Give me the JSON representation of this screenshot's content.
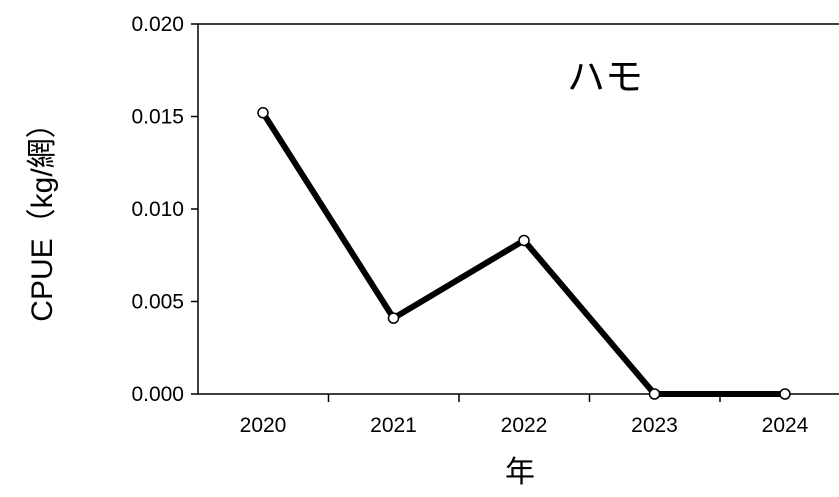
{
  "chart_data": {
    "type": "line",
    "title": "ハモ",
    "xlabel": "年",
    "ylabel": "CPUE（kg/網）",
    "categories": [
      "2020",
      "2021",
      "2022",
      "2023",
      "2024"
    ],
    "series": [
      {
        "values": [
          0.0152,
          0.0041,
          0.0083,
          0.0,
          0.0
        ]
      }
    ],
    "ylim": [
      0,
      0.02
    ],
    "yticks": [
      "0.000",
      "0.005",
      "0.010",
      "0.015",
      "0.020"
    ],
    "ytick_values": [
      0,
      0.005,
      0.01,
      0.015,
      0.02
    ],
    "grid": false,
    "line_color": "#000000",
    "marker_fill": "#ffffff"
  }
}
